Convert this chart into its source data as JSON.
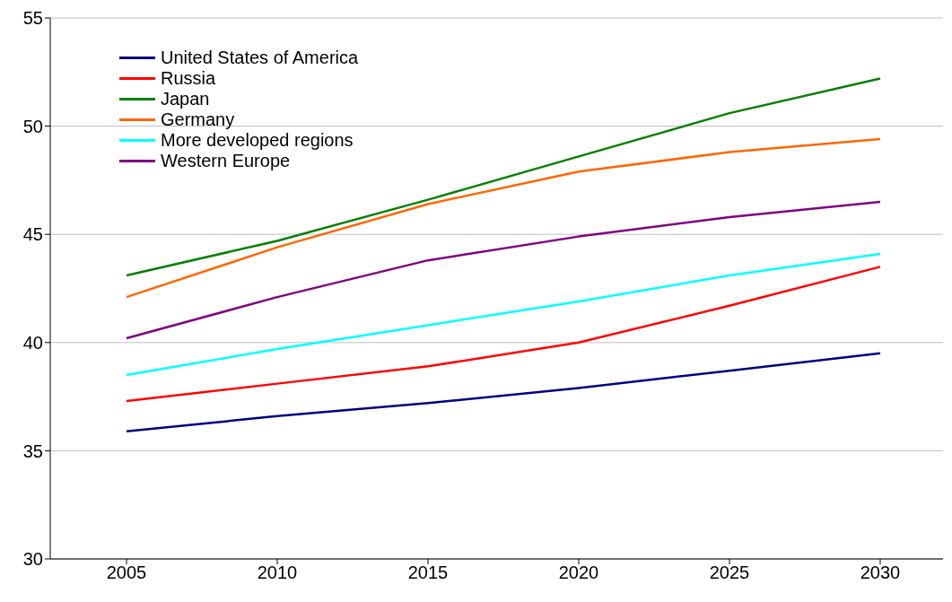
{
  "chart_data": {
    "type": "line",
    "categories": [
      "2005",
      "2010",
      "2015",
      "2020",
      "2025",
      "2030"
    ],
    "series": [
      {
        "name": "United States of America",
        "color": "#000080",
        "values": [
          35.9,
          36.6,
          37.2,
          37.9,
          38.7,
          39.5
        ]
      },
      {
        "name": "Russia",
        "color": "#ff0000",
        "values": [
          37.3,
          38.1,
          38.9,
          40.0,
          41.7,
          43.5
        ]
      },
      {
        "name": "Japan",
        "color": "#008000",
        "values": [
          43.1,
          44.7,
          46.6,
          48.6,
          50.6,
          52.2
        ]
      },
      {
        "name": "Germany",
        "color": "#ff6600",
        "values": [
          42.1,
          44.4,
          46.4,
          47.9,
          48.8,
          49.4
        ]
      },
      {
        "name": "More developed regions",
        "color": "#00ffff",
        "values": [
          38.5,
          39.7,
          40.8,
          41.9,
          43.1,
          44.1
        ]
      },
      {
        "name": "Western Europe",
        "color": "#800080",
        "values": [
          40.2,
          42.1,
          43.8,
          44.9,
          45.8,
          46.5
        ]
      }
    ],
    "ylim": [
      30,
      55
    ],
    "yticks": [
      30,
      35,
      40,
      45,
      50,
      55
    ],
    "grid": "y",
    "legend": "top left",
    "marker": "none",
    "line_style": "solid"
  }
}
